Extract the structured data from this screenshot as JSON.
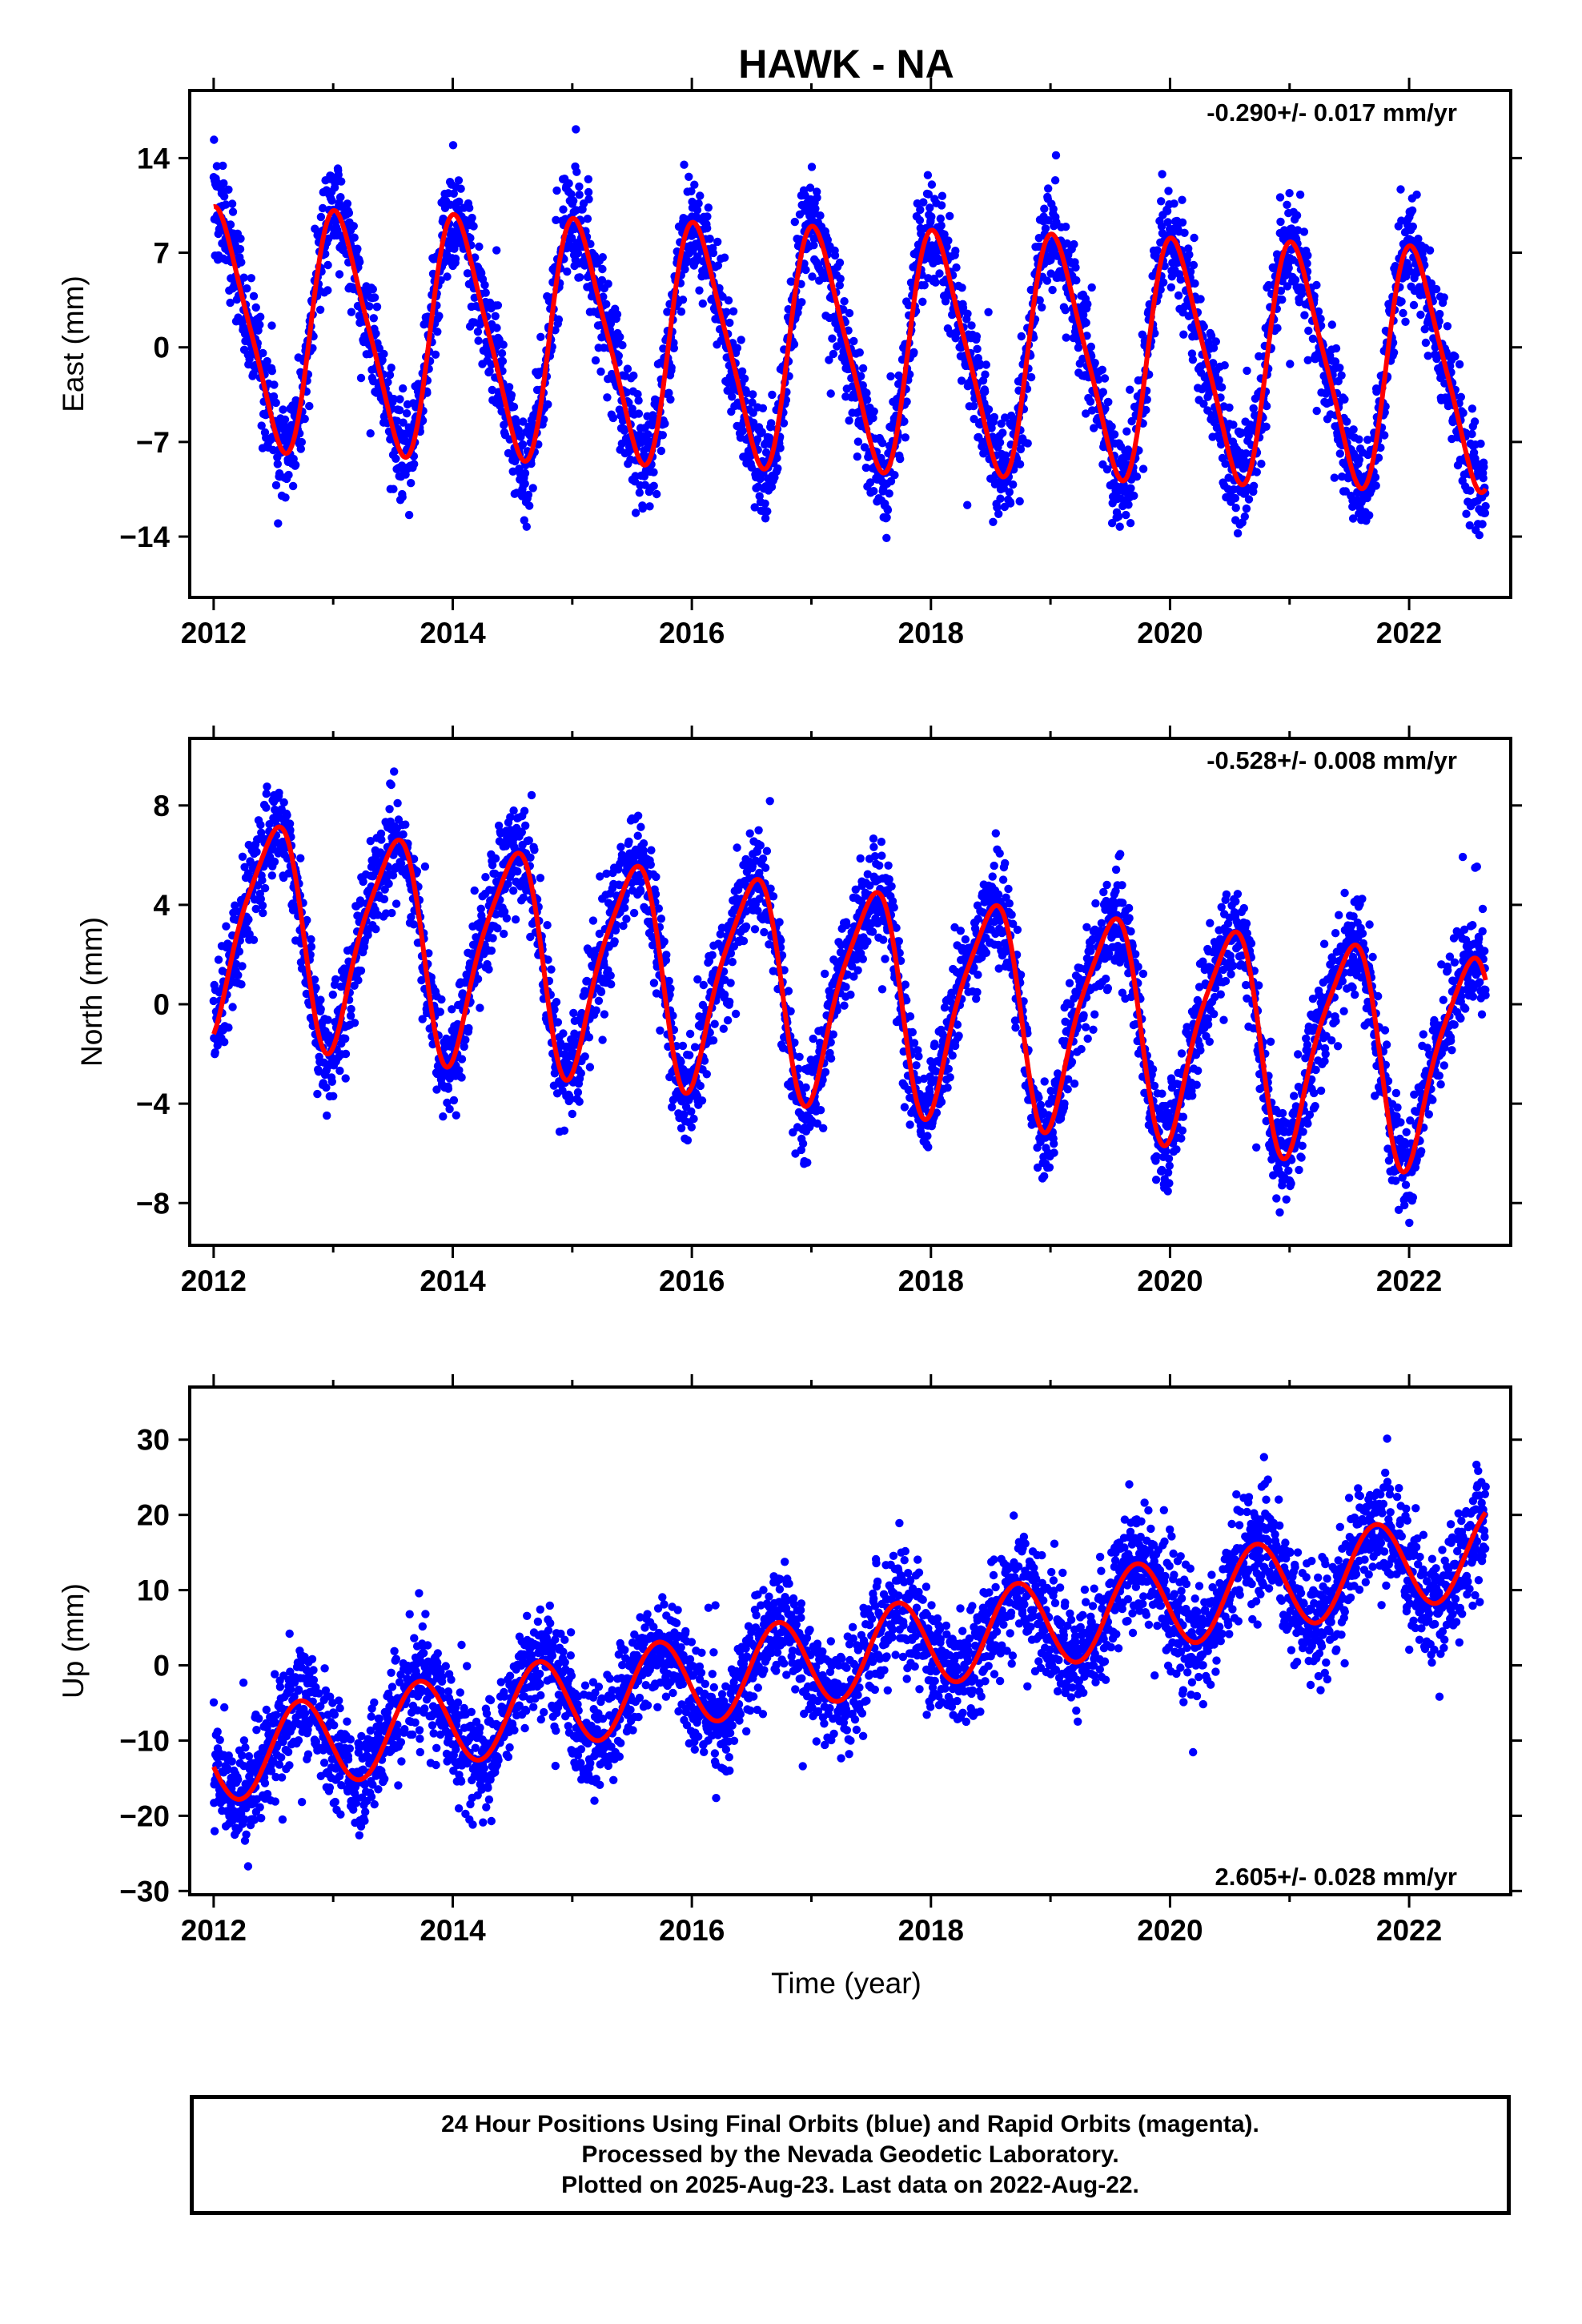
{
  "title": "HAWK - NA",
  "colors": {
    "points": "#0000ff",
    "fit": "#ff0000",
    "frame": "#000000"
  },
  "chart_data": [
    {
      "type": "scatter",
      "name": "east",
      "ylabel": "East (mm)",
      "xlabel": "",
      "xlim": [
        2011.8,
        2022.85
      ],
      "ylim": [
        -18.5,
        19.0
      ],
      "xticks": [
        2012,
        2014,
        2016,
        2018,
        2020,
        2022
      ],
      "yticks": [
        -14,
        -7,
        0,
        7,
        14
      ],
      "ytick_labels": [
        "−14",
        "−7",
        "0",
        "7",
        "14"
      ],
      "annotation": "-0.290+/- 0.017 mm/yr",
      "annotation_position": "top-right",
      "model": {
        "t_start": 2012.0,
        "t_end": 2022.64,
        "intercept_at_t0": 1.4,
        "trend": -0.29,
        "annual_sin": 3.0,
        "annual_cos": 8.0,
        "semiannual_sin": -1.2,
        "semiannual_cos": 1.0,
        "scatter_sigma": 2.0,
        "samples_per_year": 340
      }
    },
    {
      "type": "scatter",
      "name": "north",
      "ylabel": "North (mm)",
      "xlabel": "",
      "xlim": [
        2011.8,
        2022.85
      ],
      "ylim": [
        -9.7,
        10.7
      ],
      "xticks": [
        2012,
        2014,
        2016,
        2018,
        2020,
        2022
      ],
      "yticks": [
        -8,
        -4,
        0,
        4,
        8
      ],
      "ytick_labels": [
        "−8",
        "−4",
        "0",
        "4",
        "8"
      ],
      "annotation": "-0.528+/- 0.008 mm/yr",
      "annotation_position": "top-right",
      "model": {
        "t_start": 2012.0,
        "t_end": 2022.64,
        "intercept_at_t0": 3.3,
        "trend": -0.528,
        "annual_sin": 0.3,
        "annual_cos": -4.2,
        "semiannual_sin": 0.8,
        "semiannual_cos": -0.3,
        "scatter_sigma": 1.05,
        "samples_per_year": 340
      }
    },
    {
      "type": "scatter",
      "name": "up",
      "ylabel": "Up (mm)",
      "xlabel": "Time (year)",
      "xlim": [
        2011.8,
        2022.85
      ],
      "ylim": [
        -30.5,
        37.0
      ],
      "xticks": [
        2012,
        2014,
        2016,
        2018,
        2020,
        2022
      ],
      "yticks": [
        -30,
        -20,
        -10,
        0,
        10,
        20,
        30
      ],
      "ytick_labels": [
        "−30",
        "−20",
        "−10",
        "0",
        "10",
        "20",
        "30"
      ],
      "annotation": "2.605+/- 0.028 mm/yr",
      "annotation_position": "bottom-right",
      "model": {
        "t_start": 2012.0,
        "t_end": 2022.64,
        "intercept_at_t0": -12.5,
        "trend": 2.605,
        "annual_sin": -5.8,
        "annual_cos": -1.0,
        "semiannual_sin": 0.0,
        "semiannual_cos": 0.0,
        "scatter_sigma": 3.8,
        "samples_per_year": 340
      }
    }
  ],
  "caption": {
    "line1": "24 Hour Positions Using Final Orbits (blue) and Rapid Orbits (magenta).",
    "line2": "Processed by the Nevada Geodetic Laboratory.",
    "line3": "Plotted on 2025-Aug-23. Last data on 2022-Aug-22."
  }
}
